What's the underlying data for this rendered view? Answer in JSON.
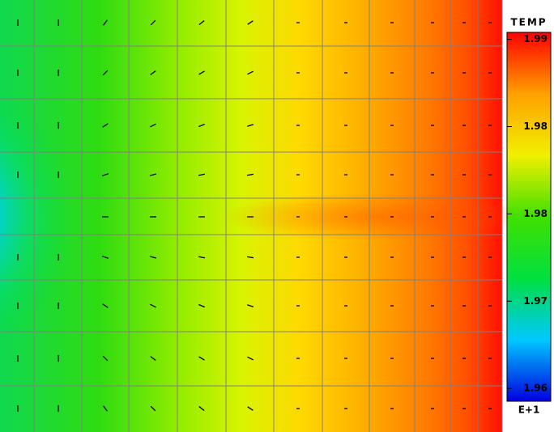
{
  "chart_data": {
    "type": "contour",
    "colorbar_title": "TEMP",
    "colorbar_exponent": "E+1",
    "clim": [
      1.9589,
      1.9906
    ],
    "colors": [
      "#0000e0",
      "#00c8ff",
      "#00e040",
      "#40e000",
      "#f0f000",
      "#ffa000",
      "#ff0000"
    ],
    "cticks": [
      1.99,
      {
        "value": 1.9825,
        "label": "1.98"
      },
      {
        "value": 1.975,
        "label": "1.98"
      },
      {
        "value": 1.9675,
        "label": "1.97"
      },
      1.96
    ]
  }
}
